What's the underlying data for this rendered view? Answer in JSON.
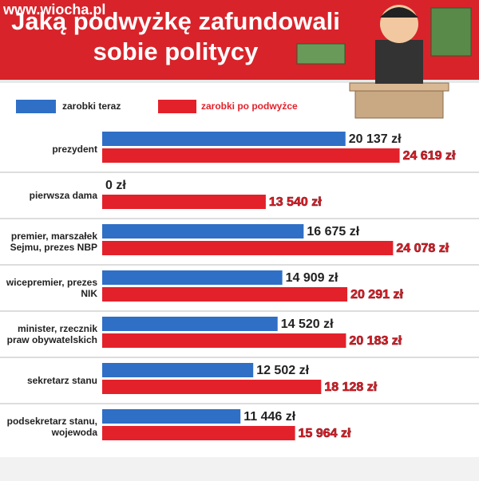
{
  "chart_data": {
    "type": "bar",
    "orientation": "horizontal",
    "watermark": "www.wiocha.pl",
    "title": "Jaką podwyżkę zafundowali sobie politycy",
    "categories": [
      "prezydent",
      "pierwsza dama",
      "premier, marszałek Sejmu, prezes NBP",
      "wicepremier, prezes NIK",
      "minister, rzecznik praw obywatelskich",
      "sekretarz stanu",
      "podsekretarz stanu, wojewoda"
    ],
    "series": [
      {
        "name": "zarobki teraz",
        "color": "#2f6fc6",
        "values": [
          20137,
          0,
          16675,
          14909,
          14520,
          12502,
          11446
        ],
        "value_labels": [
          "20 137 zł",
          "0 zł",
          "16 675 zł",
          "14 909 zł",
          "14 520 zł",
          "12 502 zł",
          "11 446 zł"
        ]
      },
      {
        "name": "zarobki po podwyżce",
        "color": "#e3212b",
        "values": [
          24619,
          13540,
          24078,
          20291,
          20183,
          18128,
          15964
        ],
        "value_labels": [
          "24 619 zł",
          "13 540 zł",
          "24 078 zł",
          "20 291 zł",
          "20 183 zł",
          "18 128 zł",
          "15 964 zł"
        ]
      }
    ],
    "xlim": [
      0,
      30000
    ]
  }
}
